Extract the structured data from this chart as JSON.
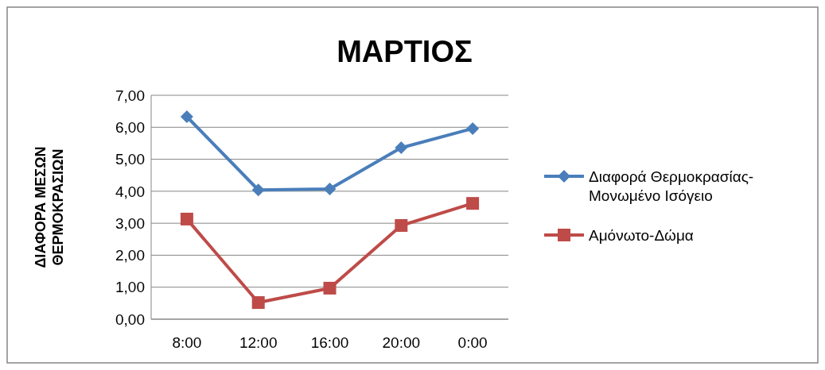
{
  "chart_data": {
    "type": "line",
    "title": "ΜΑΡΤΙΟΣ",
    "ylabel": "ΔΙΑΦΟΡΑ ΜΕΣΩΝ ΘΕΡΜΟΚΡΑΣΙΩΝ",
    "categories": [
      "8:00",
      "12:00",
      "16:00",
      "20:00",
      "0:00"
    ],
    "series": [
      {
        "name": "Διαφορά Θερμοκρασίας-Μονωμένο Ισόγειο",
        "color": "#4a7ebb",
        "marker": "diamond",
        "values": [
          6.33,
          4.04,
          4.07,
          5.36,
          5.96
        ]
      },
      {
        "name": "Αμόνωτο-Δώμα",
        "color": "#be4b48",
        "marker": "square",
        "values": [
          3.13,
          0.52,
          0.97,
          2.93,
          3.62
        ]
      }
    ],
    "ylim": [
      0,
      7
    ],
    "yticks": [
      {
        "value": 0,
        "label": "0,00"
      },
      {
        "value": 1,
        "label": "1,00"
      },
      {
        "value": 2,
        "label": "2,00"
      },
      {
        "value": 3,
        "label": "3,00"
      },
      {
        "value": 4,
        "label": "4,00"
      },
      {
        "value": 5,
        "label": "5,00"
      },
      {
        "value": 6,
        "label": "6,00"
      },
      {
        "value": 7,
        "label": "7,00"
      }
    ],
    "grid": "y",
    "legend": "right"
  }
}
